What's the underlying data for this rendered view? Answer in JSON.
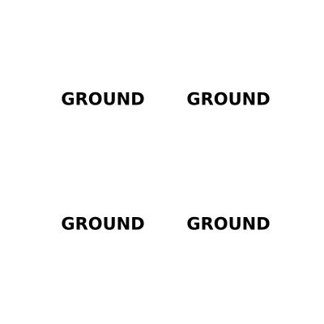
{
  "labels": [
    {
      "text": "GROUND"
    },
    {
      "text": "GROUND"
    },
    {
      "text": "GROUND"
    },
    {
      "text": "GROUND"
    }
  ],
  "colors": {
    "background": "#ffffff",
    "text": "#000000"
  }
}
